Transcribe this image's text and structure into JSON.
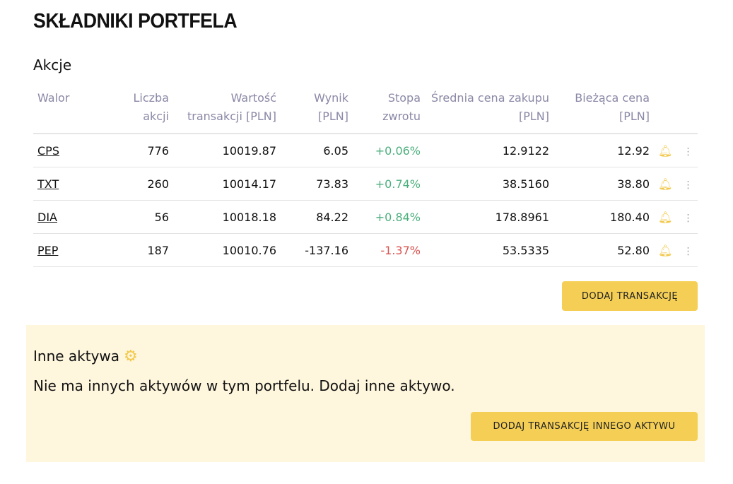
{
  "title": "SKŁADNIKI PORTFELA",
  "stocks": {
    "title": "Akcje",
    "headers": [
      "Walor",
      "Liczba akcji",
      "Wartość transakcji [PLN]",
      "Wynik [PLN]",
      "Stopa zwrotu",
      "Średnia cena zakupu [PLN]",
      "Bieżąca cena [PLN]"
    ],
    "rows": [
      {
        "ticker": "CPS",
        "qty": "776",
        "value": "10019.87",
        "result": "6.05",
        "ret": "+0.06%",
        "avg": "12.9122",
        "price": "12.92"
      },
      {
        "ticker": "TXT",
        "qty": "260",
        "value": "10014.17",
        "result": "73.83",
        "ret": "+0.74%",
        "avg": "38.5160",
        "price": "38.80"
      },
      {
        "ticker": "DIA",
        "qty": "56",
        "value": "10018.18",
        "result": "84.22",
        "ret": "+0.84%",
        "avg": "178.8961",
        "price": "180.40"
      },
      {
        "ticker": "PEP",
        "qty": "187",
        "value": "10010.76",
        "result": "-137.16",
        "ret": "-1.37%",
        "avg": "53.5335",
        "price": "52.80"
      }
    ],
    "add_button": "DODAJ TRANSAKCJĘ"
  },
  "other": {
    "title": "Inne aktywa",
    "empty": "Nie ma innych aktywów w tym portfelu. Dodaj inne aktywo.",
    "add_button": "DODAJ TRANSAKCJĘ INNEGO AKTYWU"
  },
  "colors": {
    "accent": "#f5cf55",
    "positive": "#4caf7d",
    "negative": "#d9534f",
    "panel": "#fef6dd"
  }
}
